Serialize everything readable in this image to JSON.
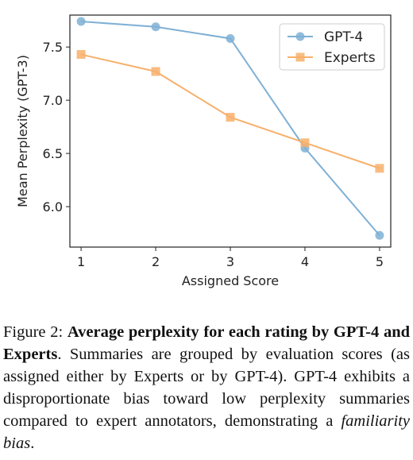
{
  "chart_data": {
    "type": "line",
    "title": "",
    "xlabel": "Assigned Score",
    "ylabel": "Mean Perplexity (GPT-3)",
    "x": [
      1,
      2,
      3,
      4,
      5
    ],
    "xticks": [
      "1",
      "2",
      "3",
      "4",
      "5"
    ],
    "yticks": [
      "6.0",
      "6.5",
      "7.0",
      "7.5"
    ],
    "xlim": [
      0.85,
      5.15
    ],
    "ylim": [
      5.62,
      7.8
    ],
    "grid": false,
    "legend_position": "upper-right",
    "series": [
      {
        "name": "GPT-4",
        "marker": "circle",
        "color": "#7fb0d5",
        "values": [
          7.74,
          7.69,
          7.58,
          6.55,
          5.73
        ]
      },
      {
        "name": "Experts",
        "marker": "square",
        "color": "#f7b06b",
        "values": [
          7.43,
          7.27,
          6.84,
          6.6,
          6.36
        ]
      }
    ]
  },
  "caption": {
    "label": "Figure 2: ",
    "bold_text": "Average perplexity for each rating by GPT-4 and Experts",
    "body": ". Summaries are grouped by evaluation scores (as assigned either by Experts or by GPT-4). GPT-4 exhibits a disproportionate bias toward low perplexity summaries compared to expert annotators, demonstrating a ",
    "italic_text": "familiarity bias",
    "end": "."
  }
}
